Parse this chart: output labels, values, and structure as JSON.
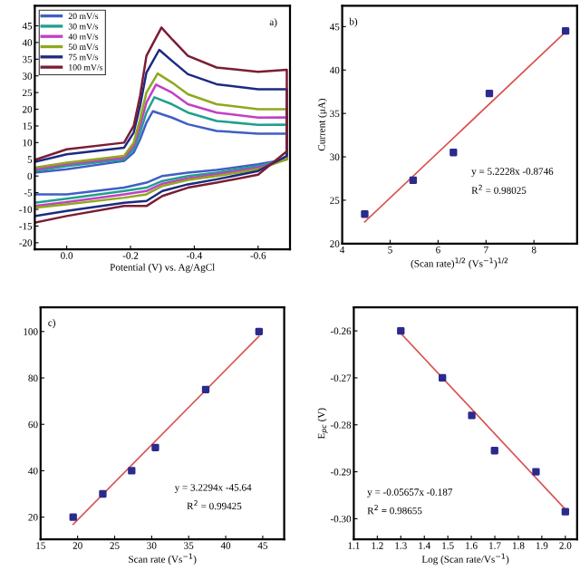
{
  "chart_data": [
    {
      "type": "line",
      "xlabel": "Potential (V) vs. Ag/AgCl",
      "xlim": [
        0.1,
        -0.7
      ],
      "xticks": [
        {
          "value": 0,
          "label": "0.0"
        },
        -0.2,
        -0.4,
        -0.6
      ],
      "ylim": [
        -22,
        51
      ],
      "yticks": [
        -20,
        -15,
        -10,
        -5,
        0,
        5,
        10,
        15,
        20,
        25,
        30,
        35,
        40,
        45
      ],
      "legend": "top left",
      "annotations": [
        "a)"
      ],
      "series": [
        {
          "name": "20 mV/s",
          "color": "#3f5fc4",
          "x": [
            0.1,
            0.0,
            -0.18,
            -0.21,
            -0.23,
            -0.25,
            -0.27,
            -0.33,
            -0.38,
            -0.47,
            -0.6,
            -0.69,
            -0.69,
            -0.6,
            -0.47,
            -0.38,
            -0.3,
            -0.25,
            -0.18,
            0.0,
            0.1
          ],
          "values": [
            1,
            2,
            4.5,
            7,
            11,
            16,
            19.4,
            17.5,
            15.5,
            13.5,
            12.7,
            12.7,
            5,
            3.5,
            1.8,
            1,
            0,
            -2,
            -3.5,
            -5.5,
            -5.5
          ]
        },
        {
          "name": "30 mV/s",
          "color": "#1fa08e",
          "x": [
            0.1,
            0.0,
            -0.18,
            -0.21,
            -0.23,
            -0.25,
            -0.275,
            -0.33,
            -0.38,
            -0.47,
            -0.6,
            -0.69,
            -0.69,
            -0.6,
            -0.47,
            -0.38,
            -0.3,
            -0.25,
            -0.18,
            0.0,
            0.1
          ],
          "values": [
            1.5,
            3,
            5,
            8,
            13,
            19,
            23.6,
            21.5,
            19,
            16.5,
            15.3,
            15.4,
            5,
            3,
            1,
            0,
            -1.5,
            -3.5,
            -4.5,
            -6.8,
            -8
          ]
        },
        {
          "name": "40 mV/s",
          "color": "#c23fc4",
          "x": [
            0.1,
            0.0,
            -0.18,
            -0.21,
            -0.23,
            -0.25,
            -0.28,
            -0.33,
            -0.38,
            -0.47,
            -0.6,
            -0.69,
            -0.69,
            -0.6,
            -0.47,
            -0.38,
            -0.3,
            -0.25,
            -0.18,
            0.0,
            0.1
          ],
          "values": [
            2,
            3.5,
            5.5,
            9,
            15,
            22,
            27.4,
            25,
            21.5,
            19,
            17.5,
            17.6,
            5,
            2.5,
            0.5,
            -0.7,
            -2.3,
            -4.5,
            -5.5,
            -7.8,
            -9
          ]
        },
        {
          "name": "50 mV/s",
          "color": "#8fa81e",
          "x": [
            0.1,
            0.0,
            -0.18,
            -0.21,
            -0.23,
            -0.25,
            -0.285,
            -0.33,
            -0.38,
            -0.47,
            -0.6,
            -0.69,
            -0.69,
            -0.6,
            -0.47,
            -0.38,
            -0.3,
            -0.25,
            -0.18,
            0.0,
            0.1
          ],
          "values": [
            2.5,
            4,
            6,
            10,
            17,
            25,
            30.7,
            28,
            24.5,
            21.5,
            20,
            20,
            5,
            2,
            0,
            -1.2,
            -3,
            -5.5,
            -6.5,
            -8.5,
            -9.5
          ]
        },
        {
          "name": "75 mV/s",
          "color": "#1c2a80",
          "x": [
            0.1,
            0.0,
            -0.18,
            -0.21,
            -0.23,
            -0.25,
            -0.29,
            -0.33,
            -0.38,
            -0.47,
            -0.6,
            -0.69,
            -0.69,
            -0.6,
            -0.47,
            -0.38,
            -0.3,
            -0.25,
            -0.18,
            0.0,
            0.1
          ],
          "values": [
            4.2,
            6.5,
            8.5,
            13,
            21,
            31,
            37.8,
            34.5,
            30.5,
            27.5,
            26,
            26,
            6,
            1.5,
            -1,
            -2.5,
            -4.5,
            -7.5,
            -8,
            -10.5,
            -12
          ]
        },
        {
          "name": "100 mV/s",
          "color": "#7a1e34",
          "x": [
            0.1,
            0.0,
            -0.18,
            -0.21,
            -0.23,
            -0.25,
            -0.297,
            -0.33,
            -0.38,
            -0.47,
            -0.6,
            -0.69,
            -0.69,
            -0.6,
            -0.47,
            -0.38,
            -0.3,
            -0.25,
            -0.18,
            0.0,
            0.1
          ],
          "values": [
            4.8,
            8,
            10,
            15,
            24,
            36,
            44.5,
            41,
            36,
            32.5,
            31.2,
            31.8,
            7.4,
            0.4,
            -2,
            -3.5,
            -6,
            -9,
            -9,
            -12,
            -14
          ]
        }
      ]
    },
    {
      "type": "scatter",
      "xlabel": "(Scan rate)$^{1/2}$ (Vs$^{−1}$)$^{1/2}$",
      "ylabel": "Current (μA)",
      "xlim": [
        4,
        8.9
      ],
      "xticks": [
        4,
        5,
        6,
        7,
        8
      ],
      "ylim": [
        20,
        47.4
      ],
      "yticks": [
        20,
        25,
        30,
        35,
        40,
        45
      ],
      "annotations": [
        "b)",
        "y = 5.2228x -0.8746",
        "R$^{2}$ = 0.98025"
      ],
      "series": [
        {
          "color": "#2b2b8c",
          "marker": "square",
          "x": [
            4.47,
            5.48,
            6.32,
            7.07,
            8.66
          ],
          "values": [
            23.4,
            27.3,
            30.5,
            37.3,
            44.5
          ]
        },
        {
          "type": "line",
          "color": "#d9534f",
          "x": [
            4.47,
            8.66
          ],
          "values": [
            22.5,
            44.4
          ]
        }
      ]
    },
    {
      "type": "scatter",
      "xlabel": "Scan rate (Vs$^{−1}$)",
      "xlim": [
        15,
        47.9
      ],
      "xticks": [
        15,
        20,
        25,
        30,
        35,
        40,
        45
      ],
      "ylim": [
        10.4,
        110.4
      ],
      "yticks": [
        20,
        40,
        60,
        80,
        100
      ],
      "annotations": [
        "c)",
        "y = 3.2294x -45.64",
        "R$^{2}$ = 0.99425"
      ],
      "series": [
        {
          "color": "#2b2b8c",
          "marker": "square",
          "x": [
            19.4,
            23.4,
            27.3,
            30.5,
            37.3,
            44.5
          ],
          "values": [
            20,
            30,
            40,
            50,
            75,
            100
          ]
        },
        {
          "type": "line",
          "color": "#d9534f",
          "x": [
            19.4,
            44.5
          ],
          "values": [
            16.9,
            98
          ]
        }
      ]
    },
    {
      "type": "scatter",
      "xlabel": "Log (Scan rate/Vs$^{−1}$)",
      "ylabel": "E$_{pc}$ (V)",
      "xlim": [
        1.1,
        2.05
      ],
      "xticks": [
        1.1,
        1.2,
        1.3,
        1.4,
        1.5,
        1.6,
        1.7,
        1.8,
        1.9,
        {
          "value": 2,
          "label": "2.0"
        }
      ],
      "ylim": [
        -0.3044,
        -0.255
      ],
      "yticks": [
        -0.26,
        -0.27,
        -0.28,
        -0.29,
        {
          "value": -0.3,
          "label": "-0.30"
        }
      ],
      "annotations": [
        "y = -0.05657x -0.187",
        "R$^{2}$ = 0.98655"
      ],
      "series": [
        {
          "color": "#2b2b8c",
          "marker": "square",
          "x": [
            1.3,
            1.477,
            1.602,
            1.699,
            1.875,
            2.0
          ],
          "values": [
            -0.26,
            -0.27,
            -0.278,
            -0.2855,
            -0.29,
            -0.2985
          ]
        },
        {
          "type": "line",
          "color": "#d9534f",
          "x": [
            1.3,
            2.0
          ],
          "values": [
            -0.2605,
            -0.298
          ]
        }
      ]
    }
  ]
}
